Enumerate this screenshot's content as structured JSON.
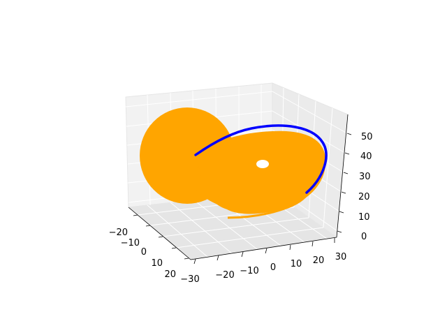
{
  "chart_data": {
    "type": "line3d",
    "title": "",
    "xlabel": "",
    "ylabel": "",
    "zlabel": "",
    "grid": true,
    "axes": {
      "x": {
        "ticks": [
          -30,
          -20,
          -10,
          0,
          10,
          20,
          30
        ],
        "labels": [
          "−30",
          "−20",
          "−10",
          "0",
          "10",
          "20",
          "30"
        ]
      },
      "y": {
        "ticks": [
          -20,
          -10,
          0,
          10,
          20
        ],
        "labels": [
          "−20",
          "−10",
          "0",
          "10",
          "20"
        ]
      },
      "z": {
        "ticks": [
          0,
          10,
          20,
          30,
          40,
          50
        ],
        "labels": [
          "0",
          "10",
          "20",
          "30",
          "40",
          "50"
        ]
      }
    },
    "series": [
      {
        "id": "attractor",
        "color": "#FFA500",
        "description_shape": "filled double-lobe (butterfly) trajectory"
      },
      {
        "id": "highlight",
        "color": "#0000FF",
        "description_shape": "short arc trajectory segment"
      }
    ]
  }
}
